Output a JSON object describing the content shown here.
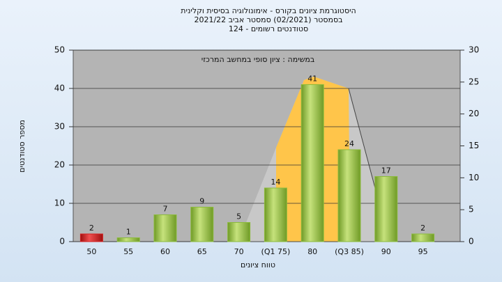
{
  "chart_data": {
    "type": "bar",
    "title": [
      "היסטוגרמת ציונים בקורס - אימונולוגיה בסיסית וקלינית",
      "בסמסטר  (02/2021)  סמסטר אביב 2021/22",
      "סטודנטים רשומים - 124"
    ],
    "annotation": "במשימה : ציון סופי במחשב המרכזי",
    "y_label": "מספר סטודנטים",
    "x_label": "טווח ציונים",
    "categories": [
      "50",
      "55",
      "60",
      "65",
      "70",
      "(Q1 75)",
      "80",
      "(Q3 85)",
      "90",
      "95"
    ],
    "values": [
      2,
      1,
      7,
      9,
      5,
      14,
      41,
      24,
      17,
      2
    ],
    "colors": [
      "#d42020",
      "#8cbb3c",
      "#8cbb3c",
      "#8cbb3c",
      "#8cbb3c",
      "#8cbb3c",
      "#8cbb3c",
      "#8cbb3c",
      "#8cbb3c",
      "#8cbb3c"
    ],
    "ylim": [
      0,
      50
    ],
    "yticks": [
      0,
      10,
      20,
      30,
      40,
      50
    ],
    "y2lim": [
      0,
      30
    ],
    "y2ticks": [
      0,
      5,
      10,
      15,
      20,
      25,
      30
    ],
    "grid": true
  }
}
